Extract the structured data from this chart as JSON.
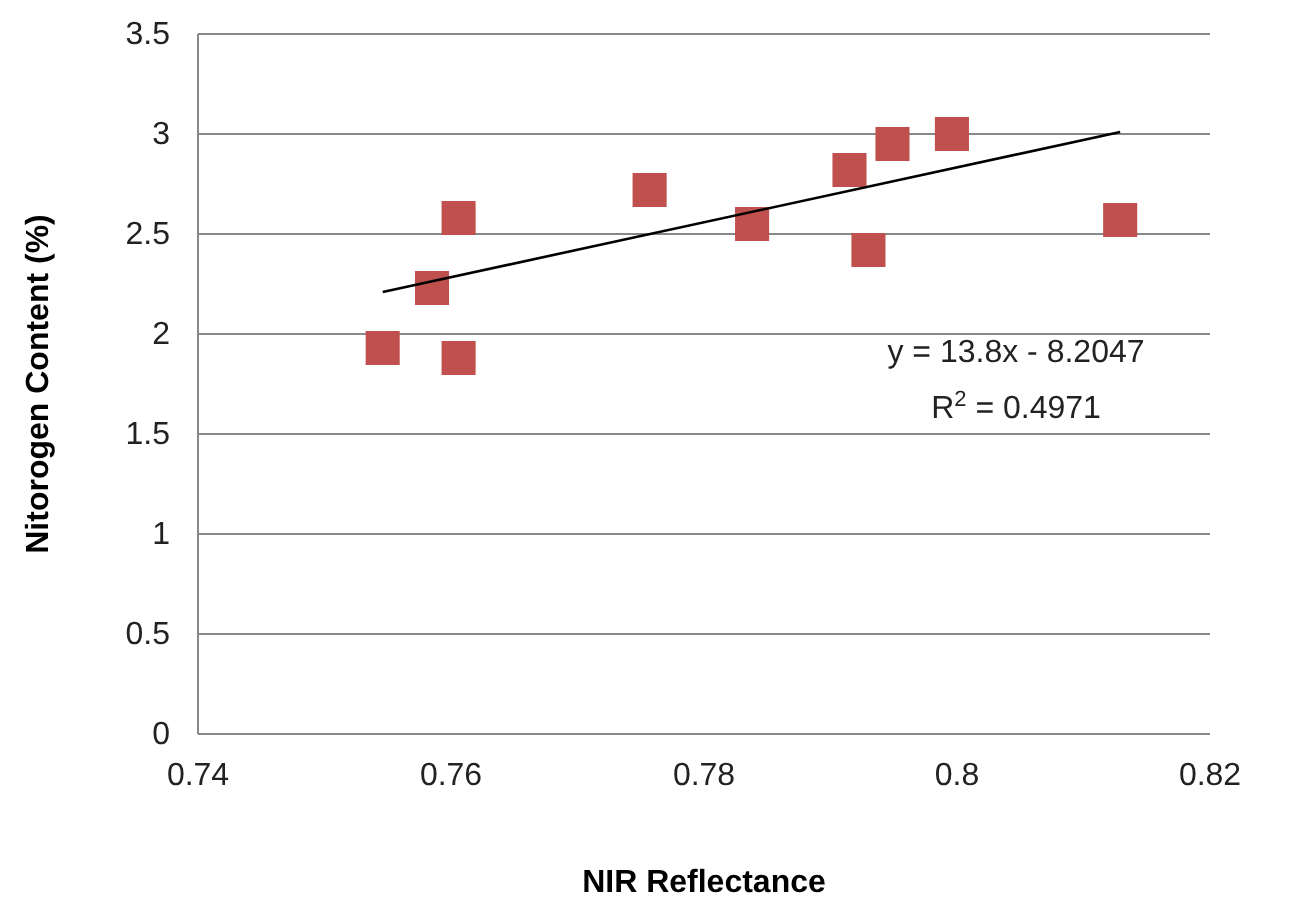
{
  "chart_data": {
    "type": "scatter",
    "xlabel": "NIR Reflectance",
    "ylabel": "Nitorogen Content (%)",
    "xlim": [
      0.74,
      0.82
    ],
    "xticks": [
      0.74,
      0.76,
      0.78,
      {
        "value": 0.8,
        "label": "0.8"
      },
      0.82
    ],
    "ylim": [
      0,
      3.5
    ],
    "yticks": [
      0,
      0.5,
      1,
      1.5,
      2,
      2.5,
      3,
      3.5
    ],
    "grid": "y",
    "marker": "square",
    "series": [
      {
        "color": "#c0504d",
        "x": [
          0.7546,
          0.7585,
          0.7606,
          0.7606,
          0.7757,
          0.7838,
          0.7915,
          0.793,
          0.7949,
          0.7996,
          0.8129
        ],
        "values": [
          1.93,
          2.23,
          1.88,
          2.58,
          2.72,
          2.55,
          2.82,
          2.42,
          2.95,
          3.0,
          2.57
        ]
      },
      {
        "type": "line",
        "color": "#000000",
        "marker": "none",
        "x": [
          0.7546,
          0.8129
        ],
        "values": [
          2.21,
          3.01
        ]
      }
    ],
    "annotations": [
      "y = 13.8x - 8.2047",
      "R$^{2}$ = 0.4971"
    ]
  }
}
